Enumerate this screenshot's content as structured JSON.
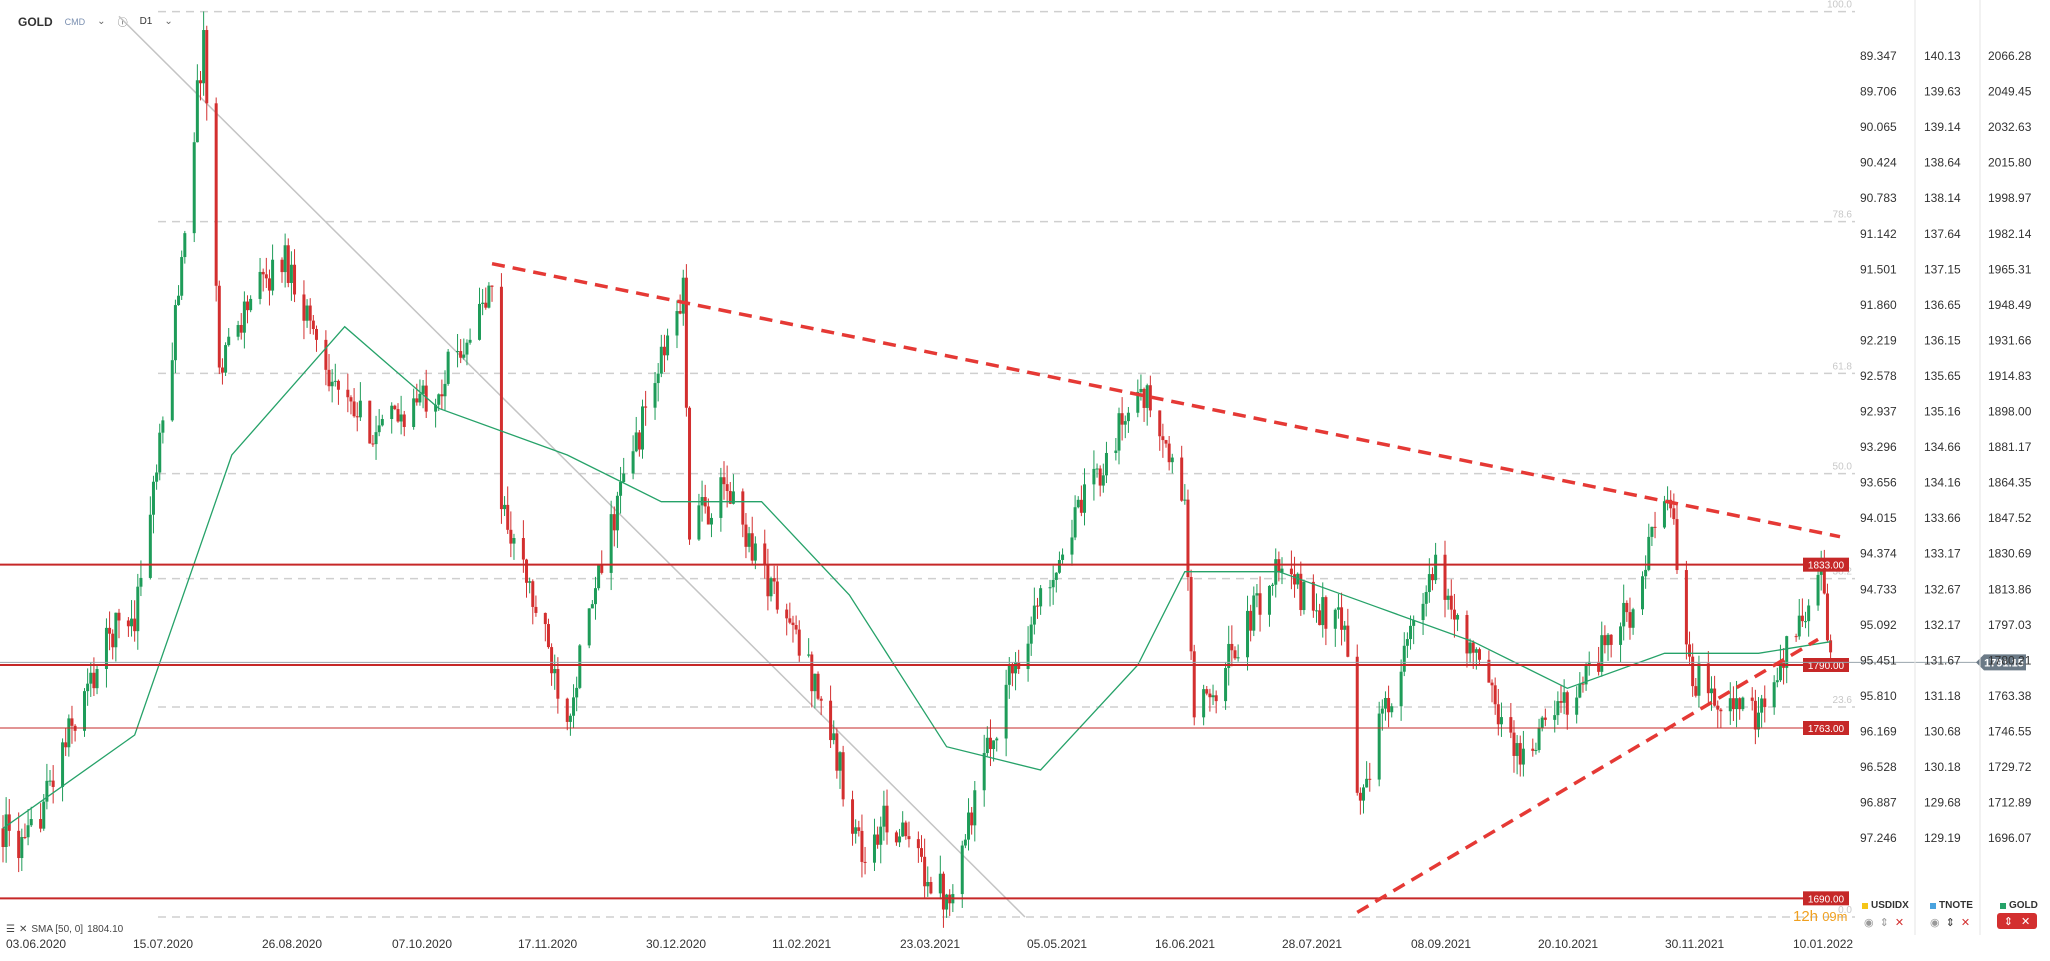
{
  "header": {
    "symbol": "GOLD",
    "market": "CMD",
    "timeframe": "D1"
  },
  "indicator": {
    "label": "SMA [50, 0]",
    "value": "1804.10"
  },
  "timer": {
    "hours": "12h",
    "minutes": "09m"
  },
  "compare_legend": [
    {
      "name": "USDIDX",
      "color": "#f5c518"
    },
    {
      "name": "TNOTE",
      "color": "#4aa3df"
    },
    {
      "name": "GOLD",
      "color": "#26a269"
    }
  ],
  "chart_data": {
    "type": "candlestick",
    "x_tick_labels": [
      "03.06.2020",
      "15.07.2020",
      "26.08.2020",
      "07.10.2020",
      "17.11.2020",
      "30.12.2020",
      "11.02.2021",
      "23.03.2021",
      "05.05.2021",
      "16.06.2021",
      "28.07.2021",
      "08.09.2021",
      "20.10.2021",
      "30.11.2021",
      "10.01.2022"
    ],
    "x_range": [
      "2020-06-03",
      "2022-01-10"
    ],
    "ylim": [
      1685,
      2075
    ],
    "y_axis_gold": [
      "2066.28",
      "2049.45",
      "2032.63",
      "2015.80",
      "1998.97",
      "1982.14",
      "1965.31",
      "1948.49",
      "1931.66",
      "1914.83",
      "1898.00",
      "1881.17",
      "1864.35",
      "1847.52",
      "1830.69",
      "1813.86",
      "1797.03",
      "1780.21",
      "1763.38",
      "1746.55",
      "1729.72",
      "1712.89",
      "1696.07"
    ],
    "y_axis_tnote": [
      "140.13",
      "139.63",
      "139.14",
      "138.64",
      "138.14",
      "137.64",
      "137.15",
      "136.65",
      "136.15",
      "135.65",
      "135.16",
      "134.66",
      "134.16",
      "133.66",
      "133.17",
      "132.67",
      "132.17",
      "131.67",
      "131.18",
      "130.68",
      "130.18",
      "129.68",
      "129.19"
    ],
    "y_axis_usdidx": [
      "89.347",
      "89.706",
      "90.065",
      "90.424",
      "90.783",
      "91.142",
      "91.501",
      "91.860",
      "92.219",
      "92.578",
      "92.937",
      "93.296",
      "93.656",
      "94.015",
      "94.374",
      "94.733",
      "95.092",
      "95.451",
      "95.810",
      "96.169",
      "96.528",
      "96.887",
      "97.246"
    ],
    "horizontal_levels": [
      {
        "label": "1833.00",
        "value": 1833.0
      },
      {
        "label": "1790.00",
        "value": 1790.0
      },
      {
        "label": "1763.00",
        "value": 1763.0
      },
      {
        "label": "1690.00",
        "value": 1690.0
      }
    ],
    "current_price": {
      "label": "1791.15",
      "value": 1791.15
    },
    "fibonacci": [
      {
        "label": "100.0",
        "value": 2070
      },
      {
        "label": "78.6",
        "value": 1980
      },
      {
        "label": "61.8",
        "value": 1915
      },
      {
        "label": "50.0",
        "value": 1872
      },
      {
        "label": "38.2",
        "value": 1827
      },
      {
        "label": "23.6",
        "value": 1772
      },
      {
        "label": "0.0",
        "value": 1682
      }
    ],
    "trendlines": [
      {
        "style": "dashed-red",
        "from": [
          "2020-11-06",
          1962
        ],
        "to": [
          "2022-01-10",
          1845
        ]
      },
      {
        "style": "dashed-red",
        "from": [
          "2021-08-09",
          1684
        ],
        "to": [
          "2022-01-03",
          1801
        ]
      },
      {
        "style": "solid-grey",
        "from": [
          "2020-07-10",
          2068
        ],
        "to": [
          "2021-04-25",
          1682
        ]
      }
    ],
    "anchors": [
      [
        "2020-06-03",
        1720
      ],
      [
        "2020-06-10",
        1710
      ],
      [
        "2020-06-24",
        1760
      ],
      [
        "2020-07-08",
        1805
      ],
      [
        "2020-07-15",
        1812
      ],
      [
        "2020-07-25",
        1900
      ],
      [
        "2020-08-06",
        2060
      ],
      [
        "2020-08-11",
        1920
      ],
      [
        "2020-08-20",
        1945
      ],
      [
        "2020-09-01",
        1965
      ],
      [
        "2020-09-20",
        1900
      ],
      [
        "2020-10-01",
        1890
      ],
      [
        "2020-10-20",
        1910
      ],
      [
        "2020-11-06",
        1950
      ],
      [
        "2020-11-09",
        1860
      ],
      [
        "2020-11-30",
        1770
      ],
      [
        "2020-12-16",
        1860
      ],
      [
        "2021-01-06",
        1950
      ],
      [
        "2021-01-08",
        1850
      ],
      [
        "2021-01-20",
        1865
      ],
      [
        "2021-02-18",
        1780
      ],
      [
        "2021-03-05",
        1705
      ],
      [
        "2021-03-12",
        1725
      ],
      [
        "2021-03-31",
        1690
      ],
      [
        "2021-04-20",
        1785
      ],
      [
        "2021-05-05",
        1835
      ],
      [
        "2021-06-01",
        1910
      ],
      [
        "2021-06-15",
        1860
      ],
      [
        "2021-06-18",
        1765
      ],
      [
        "2021-07-14",
        1830
      ],
      [
        "2021-08-05",
        1805
      ],
      [
        "2021-08-09",
        1730
      ],
      [
        "2021-08-20",
        1780
      ],
      [
        "2021-09-03",
        1830
      ],
      [
        "2021-09-30",
        1750
      ],
      [
        "2021-10-20",
        1785
      ],
      [
        "2021-11-05",
        1815
      ],
      [
        "2021-11-16",
        1865
      ],
      [
        "2021-11-24",
        1785
      ],
      [
        "2021-12-15",
        1765
      ],
      [
        "2021-12-30",
        1815
      ],
      [
        "2022-01-04",
        1828
      ],
      [
        "2022-01-07",
        1792
      ]
    ],
    "sma50_anchors": [
      [
        "2020-06-03",
        1720
      ],
      [
        "2020-07-15",
        1760
      ],
      [
        "2020-08-15",
        1880
      ],
      [
        "2020-09-20",
        1935
      ],
      [
        "2020-10-20",
        1900
      ],
      [
        "2020-11-30",
        1880
      ],
      [
        "2020-12-30",
        1860
      ],
      [
        "2021-01-31",
        1860
      ],
      [
        "2021-02-28",
        1820
      ],
      [
        "2021-03-31",
        1755
      ],
      [
        "2021-04-30",
        1745
      ],
      [
        "2021-05-31",
        1790
      ],
      [
        "2021-06-15",
        1830
      ],
      [
        "2021-07-15",
        1830
      ],
      [
        "2021-08-15",
        1815
      ],
      [
        "2021-09-15",
        1800
      ],
      [
        "2021-10-15",
        1780
      ],
      [
        "2021-11-15",
        1795
      ],
      [
        "2021-12-15",
        1795
      ],
      [
        "2022-01-07",
        1800
      ]
    ]
  }
}
